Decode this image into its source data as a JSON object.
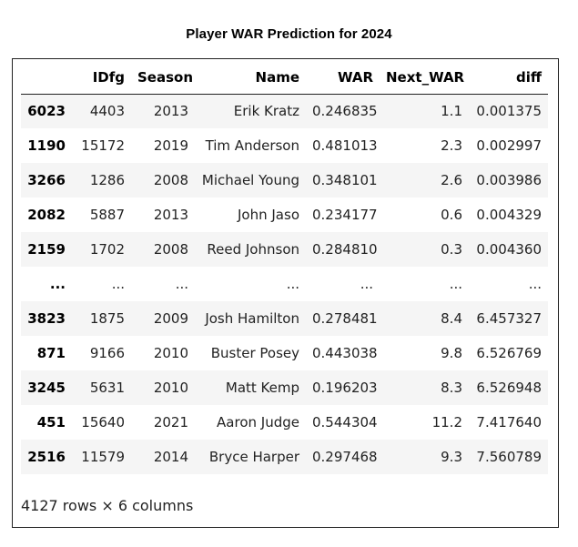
{
  "title": "Player WAR Prediction for 2024",
  "table": {
    "columns": [
      "",
      "IDfg",
      "Season",
      "Name",
      "WAR",
      "Next_WAR",
      "diff"
    ],
    "rows": [
      {
        "index": "6023",
        "IDfg": "4403",
        "Season": "2013",
        "Name": "Erik Kratz",
        "WAR": "0.246835",
        "Next_WAR": "1.1",
        "diff": "0.001375"
      },
      {
        "index": "1190",
        "IDfg": "15172",
        "Season": "2019",
        "Name": "Tim Anderson",
        "WAR": "0.481013",
        "Next_WAR": "2.3",
        "diff": "0.002997"
      },
      {
        "index": "3266",
        "IDfg": "1286",
        "Season": "2008",
        "Name": "Michael Young",
        "WAR": "0.348101",
        "Next_WAR": "2.6",
        "diff": "0.003986"
      },
      {
        "index": "2082",
        "IDfg": "5887",
        "Season": "2013",
        "Name": "John Jaso",
        "WAR": "0.234177",
        "Next_WAR": "0.6",
        "diff": "0.004329"
      },
      {
        "index": "2159",
        "IDfg": "1702",
        "Season": "2008",
        "Name": "Reed Johnson",
        "WAR": "0.284810",
        "Next_WAR": "0.3",
        "diff": "0.004360"
      },
      {
        "index": "...",
        "IDfg": "...",
        "Season": "...",
        "Name": "...",
        "WAR": "...",
        "Next_WAR": "...",
        "diff": "..."
      },
      {
        "index": "3823",
        "IDfg": "1875",
        "Season": "2009",
        "Name": "Josh Hamilton",
        "WAR": "0.278481",
        "Next_WAR": "8.4",
        "diff": "6.457327"
      },
      {
        "index": "871",
        "IDfg": "9166",
        "Season": "2010",
        "Name": "Buster Posey",
        "WAR": "0.443038",
        "Next_WAR": "9.8",
        "diff": "6.526769"
      },
      {
        "index": "3245",
        "IDfg": "5631",
        "Season": "2010",
        "Name": "Matt Kemp",
        "WAR": "0.196203",
        "Next_WAR": "8.3",
        "diff": "6.526948"
      },
      {
        "index": "451",
        "IDfg": "15640",
        "Season": "2021",
        "Name": "Aaron Judge",
        "WAR": "0.544304",
        "Next_WAR": "11.2",
        "diff": "7.417640"
      },
      {
        "index": "2516",
        "IDfg": "11579",
        "Season": "2014",
        "Name": "Bryce Harper",
        "WAR": "0.297468",
        "Next_WAR": "9.3",
        "diff": "7.560789"
      }
    ]
  },
  "footer": "4127 rows × 6 columns"
}
